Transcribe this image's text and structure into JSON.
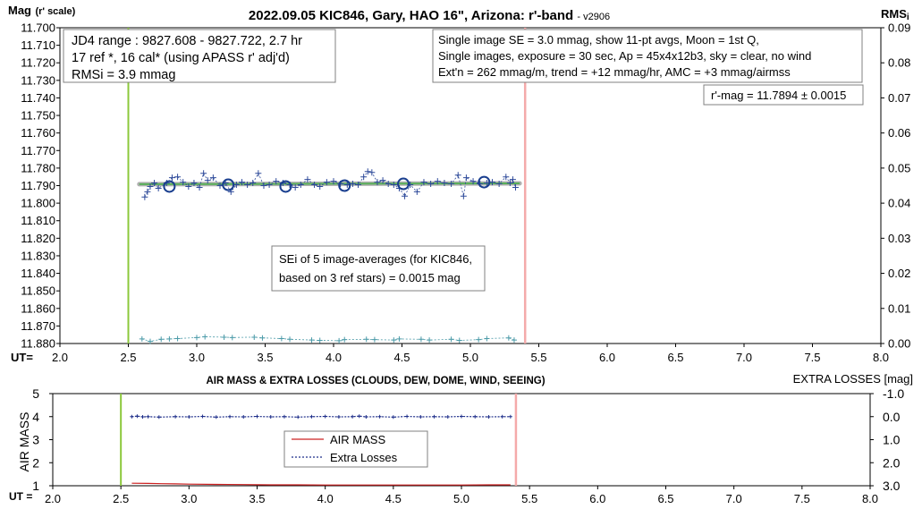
{
  "chart_data": [
    {
      "type": "scatter",
      "title": "2022.09.05 KIC846, Gary, HAO 16\", Arizona: r'-band",
      "title_version": "- v2906",
      "ylabel_main": "Mag",
      "ylabel_sub": "(r' scale)",
      "y2label": "RMS",
      "y2label_sub": "i",
      "xlabel": "UT=",
      "xlim": [
        2.0,
        8.0
      ],
      "ylim": [
        11.88,
        11.7
      ],
      "y2lim": [
        0.0,
        0.09
      ],
      "x_ticks": [
        "2.0",
        "2.5",
        "3.0",
        "3.5",
        "4.0",
        "4.5",
        "5.0",
        "5.5",
        "6.0",
        "6.5",
        "7.0",
        "7.5",
        "8.0"
      ],
      "y_ticks": [
        "11.700",
        "11.710",
        "11.720",
        "11.730",
        "11.740",
        "11.750",
        "11.760",
        "11.770",
        "11.780",
        "11.790",
        "11.800",
        "11.810",
        "11.820",
        "11.830",
        "11.840",
        "11.850",
        "11.860",
        "11.870",
        "11.880"
      ],
      "y2_ticks": [
        "0.09",
        "0.08",
        "0.07",
        "0.06",
        "0.05",
        "0.04",
        "0.03",
        "0.02",
        "0.01",
        "0.00"
      ],
      "start_line_x": 2.5,
      "end_line_x": 5.4,
      "series": [
        {
          "kind": "individual",
          "values": [
            [
              2.62,
              11.7965
            ],
            [
              2.64,
              11.7935
            ],
            [
              2.66,
              11.7905
            ],
            [
              2.69,
              11.7885
            ],
            [
              2.72,
              11.7915
            ],
            [
              2.78,
              11.7885
            ],
            [
              2.82,
              11.7855
            ],
            [
              2.86,
              11.785
            ],
            [
              2.9,
              11.788
            ],
            [
              2.94,
              11.7905
            ],
            [
              2.98,
              11.7885
            ],
            [
              3.02,
              11.791
            ],
            [
              3.05,
              11.783
            ],
            [
              3.08,
              11.787
            ],
            [
              3.12,
              11.7855
            ],
            [
              3.17,
              11.79
            ],
            [
              3.21,
              11.7885
            ],
            [
              3.25,
              11.7935
            ],
            [
              3.29,
              11.7895
            ],
            [
              3.33,
              11.788
            ],
            [
              3.37,
              11.7895
            ],
            [
              3.41,
              11.7885
            ],
            [
              3.45,
              11.783
            ],
            [
              3.49,
              11.79
            ],
            [
              3.53,
              11.7895
            ],
            [
              3.58,
              11.7875
            ],
            [
              3.63,
              11.7885
            ],
            [
              3.68,
              11.7895
            ],
            [
              3.72,
              11.791
            ],
            [
              3.76,
              11.7895
            ],
            [
              3.81,
              11.7865
            ],
            [
              3.86,
              11.7895
            ],
            [
              3.9,
              11.7905
            ],
            [
              3.95,
              11.788
            ],
            [
              4.0,
              11.7875
            ],
            [
              4.05,
              11.789
            ],
            [
              4.1,
              11.7895
            ],
            [
              4.14,
              11.789
            ],
            [
              4.18,
              11.7895
            ],
            [
              4.22,
              11.785
            ],
            [
              4.25,
              11.782
            ],
            [
              4.28,
              11.7825
            ],
            [
              4.32,
              11.788
            ],
            [
              4.36,
              11.787
            ],
            [
              4.4,
              11.789
            ],
            [
              4.44,
              11.7895
            ],
            [
              4.48,
              11.7915
            ],
            [
              4.52,
              11.796
            ],
            [
              4.56,
              11.7895
            ],
            [
              4.61,
              11.7935
            ],
            [
              4.66,
              11.788
            ],
            [
              4.71,
              11.789
            ],
            [
              4.76,
              11.7875
            ],
            [
              4.81,
              11.7885
            ],
            [
              4.86,
              11.789
            ],
            [
              4.91,
              11.784
            ],
            [
              4.95,
              11.796
            ],
            [
              4.97,
              11.7855
            ],
            [
              5.02,
              11.7875
            ],
            [
              5.07,
              11.789
            ],
            [
              5.12,
              11.7885
            ],
            [
              5.16,
              11.788
            ],
            [
              5.21,
              11.789
            ],
            [
              5.26,
              11.785
            ],
            [
              5.29,
              11.7885
            ],
            [
              5.31,
              11.7865
            ],
            [
              5.33,
              11.791
            ]
          ]
        },
        {
          "kind": "averages",
          "values": [
            [
              2.8,
              11.7905
            ],
            [
              3.23,
              11.7895
            ],
            [
              3.65,
              11.7905
            ],
            [
              4.08,
              11.79
            ],
            [
              4.51,
              11.789
            ],
            [
              5.1,
              11.788
            ]
          ]
        },
        {
          "kind": "trend",
          "values": [
            [
              2.58,
              11.7892
            ],
            [
              5.36,
              11.7887
            ]
          ]
        },
        {
          "kind": "rms_axis2",
          "values": [
            [
              2.6,
              0.0013
            ],
            [
              2.66,
              0.0006
            ],
            [
              2.74,
              0.0012
            ],
            [
              2.8,
              0.0013
            ],
            [
              2.86,
              0.0014
            ],
            [
              3.0,
              0.0017
            ],
            [
              3.06,
              0.0019
            ],
            [
              3.2,
              0.0018
            ],
            [
              3.26,
              0.0017
            ],
            [
              3.42,
              0.0018
            ],
            [
              3.48,
              0.0016
            ],
            [
              3.62,
              0.0014
            ],
            [
              3.68,
              0.0012
            ],
            [
              3.84,
              0.001
            ],
            [
              3.9,
              0.0009
            ],
            [
              4.04,
              0.0008
            ],
            [
              4.08,
              0.0011
            ],
            [
              4.24,
              0.0012
            ],
            [
              4.3,
              0.0011
            ],
            [
              4.44,
              0.001
            ],
            [
              4.48,
              0.0013
            ],
            [
              4.64,
              0.0012
            ],
            [
              4.7,
              0.001
            ],
            [
              4.86,
              0.0012
            ],
            [
              4.92,
              0.0009
            ],
            [
              5.06,
              0.0011
            ],
            [
              5.12,
              0.0014
            ],
            [
              5.28,
              0.0016
            ],
            [
              5.32,
              0.001
            ]
          ]
        }
      ],
      "info_left": [
        "JD4 range : 9827.608 - 9827.722,  2.7  hr",
        "17 ref *, 16 cal* (using APASS r' adj'd)",
        "RMSi = 3.9 mmag"
      ],
      "info_right": [
        "Single image SE = 3.0 mmag, show  11-pt avgs, Moon = 1st Q,",
        "Single images, exposure = 30 sec, Ap = 45x4x12b3, sky = clear, no wind",
        "Ext'n = 262 mmag/m, trend = +12  mmag/hr, AMC = +3 mmag/airmss"
      ],
      "rmag_box": "r'-mag = 11.7894 ± 0.0015",
      "sei_box": [
        "SEi of 5 image-averages (for KIC846,",
        "based on 3 ref stars) = 0.0015 mag"
      ],
      "colors": {
        "individual": "#2e4a9a",
        "averages": "#1a3f8f",
        "trend": "#58b058",
        "rms": "#4a9aa8",
        "start": "#8cc83c",
        "end": "#f4aaaa"
      }
    },
    {
      "type": "line",
      "title": "AIR MASS & EXTRA LOSSES (CLOUDS, DEW, DOME, WIND, SEEING)",
      "ylabel": "AIR MASS",
      "y2label": "EXTRA LOSSES [mag]",
      "xlabel": "UT =",
      "xlim": [
        2.0,
        8.0
      ],
      "ylim": [
        1,
        5
      ],
      "y2lim": [
        -1.0,
        3.0
      ],
      "x_ticks": [
        "2.0",
        "2.5",
        "3.0",
        "3.5",
        "4.0",
        "4.5",
        "5.0",
        "5.5",
        "6.0",
        "6.5",
        "7.0",
        "7.5",
        "8.0"
      ],
      "y_ticks": [
        "5",
        "4",
        "3",
        "2",
        "1"
      ],
      "y2_ticks": [
        "-1.0",
        "0.0",
        "1.0",
        "2.0",
        "3.0"
      ],
      "start_line_x": 2.5,
      "end_line_x": 5.4,
      "legend": [
        "AIR MASS",
        "Extra Losses"
      ],
      "series": [
        {
          "name": "AIR MASS",
          "values": [
            [
              2.58,
              1.11
            ],
            [
              2.7,
              1.1
            ],
            [
              2.8,
              1.09
            ],
            [
              2.9,
              1.08
            ],
            [
              3.0,
              1.07
            ],
            [
              3.2,
              1.06
            ],
            [
              3.4,
              1.05
            ],
            [
              3.6,
              1.04
            ],
            [
              3.8,
              1.04
            ],
            [
              4.0,
              1.03
            ],
            [
              4.2,
              1.03
            ],
            [
              4.4,
              1.03
            ],
            [
              4.6,
              1.03
            ],
            [
              4.8,
              1.03
            ],
            [
              5.0,
              1.03
            ],
            [
              5.2,
              1.04
            ],
            [
              5.36,
              1.04
            ]
          ]
        },
        {
          "name": "Extra Losses",
          "values": [
            [
              2.58,
              0.0
            ],
            [
              2.62,
              -0.02
            ],
            [
              2.66,
              0.01
            ],
            [
              2.7,
              0.0
            ],
            [
              2.78,
              0.02
            ],
            [
              2.9,
              0.0
            ],
            [
              3.0,
              0.01
            ],
            [
              3.1,
              -0.01
            ],
            [
              3.2,
              0.02
            ],
            [
              3.3,
              0.0
            ],
            [
              3.4,
              0.01
            ],
            [
              3.5,
              -0.01
            ],
            [
              3.6,
              0.01
            ],
            [
              3.7,
              0.0
            ],
            [
              3.8,
              0.02
            ],
            [
              3.9,
              0.0
            ],
            [
              4.0,
              -0.01
            ],
            [
              4.1,
              0.01
            ],
            [
              4.2,
              0.0
            ],
            [
              4.25,
              -0.02
            ],
            [
              4.3,
              0.01
            ],
            [
              4.4,
              0.0
            ],
            [
              4.5,
              0.02
            ],
            [
              4.6,
              -0.01
            ],
            [
              4.7,
              0.01
            ],
            [
              4.8,
              0.0
            ],
            [
              4.9,
              0.01
            ],
            [
              5.0,
              -0.01
            ],
            [
              5.1,
              0.0
            ],
            [
              5.2,
              0.01
            ],
            [
              5.3,
              0.0
            ],
            [
              5.36,
              0.0
            ]
          ]
        }
      ],
      "colors": {
        "airmass": "#cc2020",
        "extra": "#1f2f8a",
        "start": "#8cc83c",
        "end": "#f4aaaa"
      }
    }
  ]
}
